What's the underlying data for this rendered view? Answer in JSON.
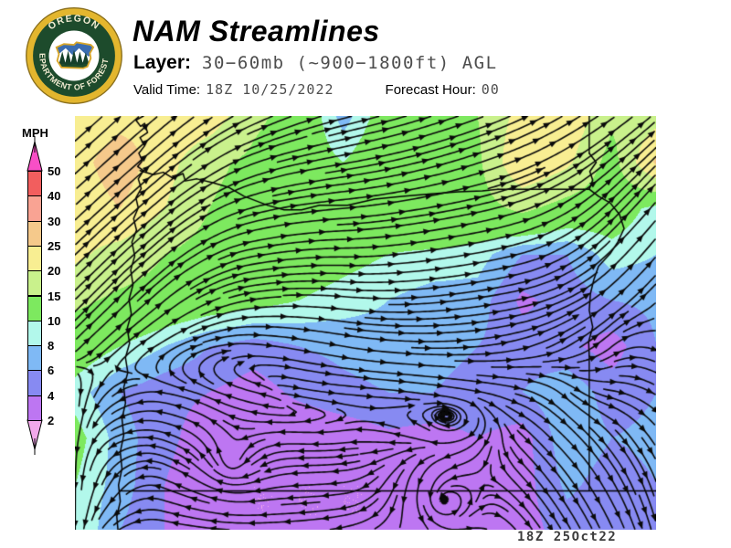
{
  "header": {
    "title": "NAM Streamlines",
    "layer_label": "Layer:",
    "layer_value": "30−60mb (~900−1800ft) AGL",
    "valid_time_label": "Valid Time:",
    "valid_time_value": "18Z 10/25/2022",
    "forecast_hour_label": "Forecast Hour:",
    "forecast_hour_value": "00"
  },
  "logo": {
    "top_text": "OREGON",
    "bottom_text": "DEPARTMENT OF FORESTRY",
    "rim_color": "#e3b62e",
    "ring_color": "#1d4b2c"
  },
  "legend": {
    "title": "MPH",
    "levels": [
      50,
      40,
      30,
      25,
      20,
      15,
      10,
      8,
      6,
      4,
      2
    ],
    "segment_colors_top_to_bottom": [
      "#f25e5e",
      "#f9a393",
      "#f5c98b",
      "#f8ee92",
      "#c9f18c",
      "#7de95f",
      "#b2f8eb",
      "#7fb9f5",
      "#878af2",
      "#bd76f2"
    ],
    "arrow_top_color": "#f84fc6",
    "arrow_bottom_color": "#f2a9ea"
  },
  "footer": {
    "timestamp": "18Z 25Oct22"
  },
  "map_data": {
    "type": "heatmap",
    "units": "MPH",
    "speed_bands": [
      {
        "max": 2,
        "color": "#f2a9ea"
      },
      {
        "max": 4,
        "color": "#bd76f2"
      },
      {
        "max": 6,
        "color": "#878af2"
      },
      {
        "max": 8,
        "color": "#7fb9f5"
      },
      {
        "max": 10,
        "color": "#b2f8eb"
      },
      {
        "max": 15,
        "color": "#7de95f"
      },
      {
        "max": 20,
        "color": "#c9f18c"
      },
      {
        "max": 25,
        "color": "#f8ee92"
      },
      {
        "max": 30,
        "color": "#f5c98b"
      },
      {
        "max": 40,
        "color": "#f9a393"
      },
      {
        "max": 50,
        "color": "#f25e5e"
      },
      {
        "max": 999,
        "color": "#f84fc6"
      }
    ],
    "speed_grid": [
      [
        22,
        23,
        24,
        23,
        16,
        13,
        7,
        12,
        14,
        15,
        22,
        24,
        16,
        18
      ],
      [
        23,
        28,
        22,
        16,
        14,
        12,
        10,
        13,
        13,
        14,
        25,
        21,
        13,
        26
      ],
      [
        22,
        25,
        20,
        15,
        13,
        12,
        13,
        12,
        14,
        13,
        16,
        13,
        12,
        9
      ],
      [
        21,
        18,
        15,
        13,
        12,
        12,
        11,
        10,
        9.5,
        9,
        6,
        6,
        9,
        8
      ],
      [
        16,
        14,
        13,
        12,
        11,
        10,
        9,
        8,
        7,
        7,
        3.5,
        5,
        6,
        6.5
      ],
      [
        12,
        10,
        8,
        6,
        5,
        6,
        6.5,
        7,
        6.5,
        6,
        5,
        4.5,
        3,
        6
      ],
      [
        9,
        6,
        4.5,
        4,
        3,
        4.5,
        5.5,
        6,
        6,
        5.5,
        6,
        7.5,
        5,
        6
      ],
      [
        11,
        7,
        4.5,
        3,
        2.5,
        2,
        2.5,
        3.5,
        3,
        4,
        3,
        7.5,
        6,
        6.5
      ],
      [
        10,
        7,
        4,
        2.5,
        2,
        2,
        2,
        2,
        2.5,
        3,
        3,
        6.5,
        5,
        6
      ],
      [
        10,
        6,
        4,
        2.5,
        2,
        2,
        2,
        2,
        2,
        2.5,
        3,
        5,
        4.5,
        6
      ]
    ],
    "flow_angle_grid_deg": [
      [
        -42,
        -42,
        -40,
        -35,
        -25,
        -20,
        -15,
        -15,
        -18,
        -20,
        -25,
        -30,
        -35,
        -40
      ],
      [
        -42,
        -42,
        -40,
        -33,
        -20,
        -12,
        -10,
        -12,
        -15,
        -18,
        -22,
        -30,
        -40,
        -45
      ],
      [
        -43,
        -42,
        -40,
        -30,
        -15,
        -8,
        -5,
        -8,
        -10,
        -12,
        -18,
        -30,
        -45,
        -50
      ],
      [
        -44,
        -43,
        -40,
        -28,
        -10,
        -5,
        0,
        -5,
        -8,
        -10,
        -15,
        -30,
        -45,
        -50
      ],
      [
        -45,
        -45,
        -40,
        -25,
        -8,
        0,
        5,
        0,
        -5,
        -8,
        -12,
        -25,
        -40,
        -45
      ],
      [
        -45,
        -40,
        -30,
        -15,
        5,
        10,
        10,
        5,
        0,
        -5,
        -15,
        -30,
        -40,
        20
      ],
      [
        90,
        150,
        190,
        200,
        195,
        10,
        5,
        5,
        8,
        10,
        15,
        40,
        10,
        30
      ],
      [
        95,
        160,
        195,
        200,
        190,
        185,
        175,
        195,
        220,
        120,
        45,
        45,
        50,
        55
      ],
      [
        90,
        130,
        200,
        190,
        185,
        180,
        175,
        140,
        90,
        45,
        50,
        55,
        60,
        70
      ],
      [
        90,
        150,
        190,
        185,
        180,
        175,
        170,
        160,
        120,
        60,
        55,
        60,
        65,
        75
      ]
    ],
    "vortices": [
      {
        "x": 0.634,
        "y": 0.927,
        "r": 0.085,
        "strength": 2.0,
        "spin": 1,
        "sink": 0.3
      },
      {
        "x": 0.27,
        "y": 0.84,
        "r": 0.07,
        "strength": 1.1,
        "spin": -1,
        "sink": 0.05
      }
    ],
    "borders": {
      "coastline": [
        [
          0.118,
          0
        ],
        [
          0.105,
          0.01
        ],
        [
          0.113,
          0.025
        ],
        [
          0.12,
          0.018
        ],
        [
          0.125,
          0.04
        ],
        [
          0.112,
          0.052
        ],
        [
          0.12,
          0.072
        ],
        [
          0.11,
          0.09
        ],
        [
          0.116,
          0.108
        ],
        [
          0.108,
          0.122
        ],
        [
          0.118,
          0.132
        ],
        [
          0.109,
          0.152
        ],
        [
          0.114,
          0.175
        ],
        [
          0.105,
          0.198
        ],
        [
          0.109,
          0.222
        ],
        [
          0.101,
          0.248
        ],
        [
          0.106,
          0.276
        ],
        [
          0.098,
          0.305
        ],
        [
          0.103,
          0.338
        ],
        [
          0.096,
          0.372
        ],
        [
          0.1,
          0.408
        ],
        [
          0.093,
          0.443
        ],
        [
          0.097,
          0.478
        ],
        [
          0.09,
          0.513
        ],
        [
          0.094,
          0.549
        ],
        [
          0.087,
          0.584
        ],
        [
          0.091,
          0.62
        ],
        [
          0.084,
          0.656
        ],
        [
          0.087,
          0.694
        ],
        [
          0.081,
          0.732
        ],
        [
          0.084,
          0.772
        ],
        [
          0.078,
          0.812
        ],
        [
          0.081,
          0.852
        ],
        [
          0.075,
          0.892
        ],
        [
          0.078,
          0.932
        ],
        [
          0.072,
          0.968
        ],
        [
          0.074,
          1
        ]
      ],
      "columbia_river": [
        [
          0.112,
          0.132
        ],
        [
          0.135,
          0.142
        ],
        [
          0.152,
          0.136
        ],
        [
          0.168,
          0.15
        ],
        [
          0.186,
          0.139
        ],
        [
          0.19,
          0.157
        ],
        [
          0.21,
          0.152
        ],
        [
          0.237,
          0.161
        ],
        [
          0.264,
          0.172
        ],
        [
          0.291,
          0.194
        ],
        [
          0.332,
          0.216
        ],
        [
          0.36,
          0.227
        ],
        [
          0.39,
          0.227
        ],
        [
          0.421,
          0.216
        ],
        [
          0.469,
          0.216
        ],
        [
          0.516,
          0.201
        ],
        [
          0.563,
          0.194
        ],
        [
          0.613,
          0.188
        ],
        [
          0.66,
          0.183
        ],
        [
          0.701,
          0.181
        ],
        [
          0.728,
          0.177
        ]
      ],
      "border_46n": [
        [
          0.728,
          0.177
        ],
        [
          0.885,
          0.177
        ]
      ],
      "wa_id_border": [
        [
          0.885,
          0
        ],
        [
          0.885,
          0.09
        ]
      ],
      "snake_river": [
        [
          0.885,
          0.09
        ],
        [
          0.897,
          0.112
        ],
        [
          0.886,
          0.134
        ],
        [
          0.891,
          0.155
        ],
        [
          0.885,
          0.177
        ],
        [
          0.901,
          0.194
        ],
        [
          0.921,
          0.21
        ],
        [
          0.937,
          0.238
        ],
        [
          0.945,
          0.272
        ],
        [
          0.934,
          0.305
        ],
        [
          0.921,
          0.333
        ],
        [
          0.901,
          0.363
        ],
        [
          0.893,
          0.395
        ],
        [
          0.887,
          0.43
        ],
        [
          0.885,
          0.47
        ],
        [
          0.891,
          0.51
        ],
        [
          0.884,
          0.545
        ],
        [
          0.885,
          0.58
        ]
      ],
      "or_id_south_border": [
        [
          0.885,
          0.58
        ],
        [
          0.885,
          0.906
        ]
      ],
      "border_42n": [
        [
          0.077,
          0.906
        ],
        [
          1,
          0.906
        ]
      ]
    },
    "stream_color": "#0a0a0a",
    "border_color": "#000000"
  }
}
